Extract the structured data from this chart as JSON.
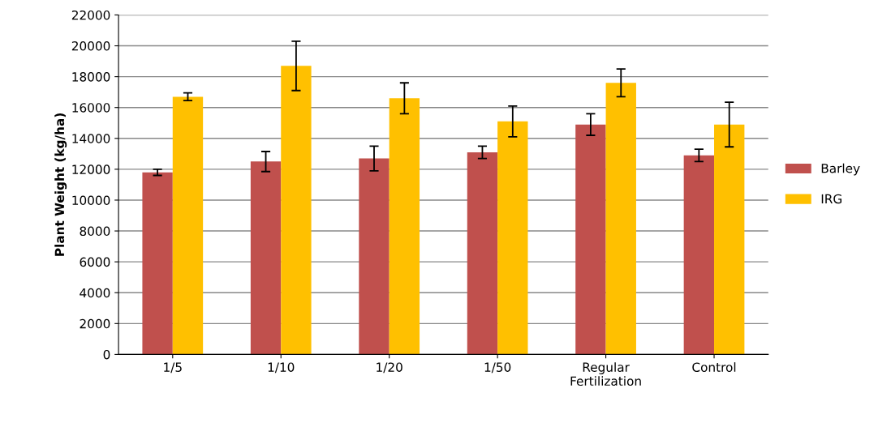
{
  "chart_data": {
    "type": "bar",
    "ylabel": "Plant Weight (kg/ha)",
    "categories": [
      "1/5",
      "1/10",
      "1/20",
      "1/50",
      "Regular\nFertilization",
      "Control"
    ],
    "series": [
      {
        "name": "Barley",
        "color": "#c0504d",
        "values": [
          11800,
          12500,
          12700,
          13100,
          14900,
          12900
        ],
        "errors": [
          200,
          650,
          800,
          400,
          700,
          400
        ]
      },
      {
        "name": "IRG",
        "color": "#ffc000",
        "values": [
          16700,
          18700,
          16600,
          15100,
          17600,
          14900
        ],
        "errors": [
          250,
          1600,
          1000,
          1000,
          900,
          1450
        ]
      }
    ],
    "ylim": [
      0,
      22000
    ],
    "yticks": [
      0,
      2000,
      4000,
      6000,
      8000,
      10000,
      12000,
      14000,
      16000,
      18000,
      20000,
      22000
    ],
    "grid": "y",
    "legend": "right"
  }
}
